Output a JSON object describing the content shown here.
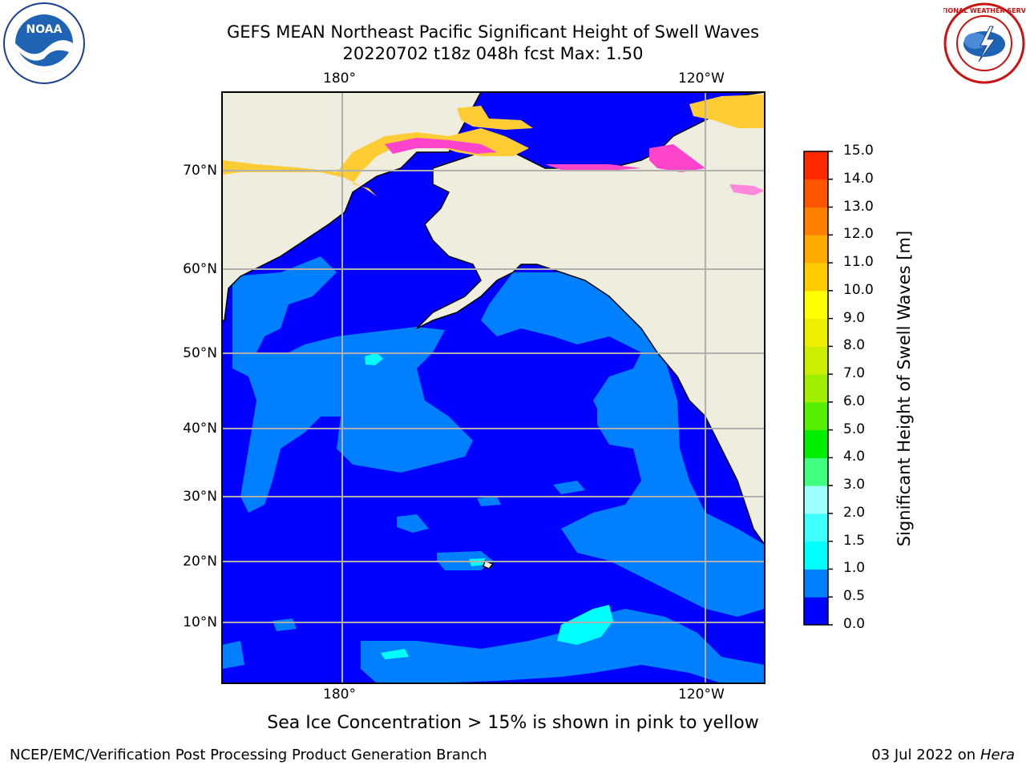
{
  "header": {
    "title_line1": "GEFS MEAN Northeast Pacific Significant Height of Swell Waves",
    "title_line2": "20220702 t18z 048h fcst   Max: 1.50"
  },
  "logos": {
    "left": "NOAA",
    "right": "NATIONAL WEATHER SERVICE"
  },
  "map": {
    "lon_labels": [
      "180°",
      "120°W"
    ],
    "lat_labels": [
      "70°N",
      "60°N",
      "50°N",
      "40°N",
      "30°N",
      "20°N",
      "10°N"
    ],
    "colors": {
      "land": "#efedde",
      "ocean_low": "#0000ff",
      "ocean_mid": "#0080ff",
      "ocean_high": "#00ffff",
      "ice": "#ffcc33",
      "ice_edge": "#ff44cc",
      "grid": "#b0b0b0"
    }
  },
  "colorbar": {
    "label": "Significant Height of Swell Waves [m]",
    "ticks": [
      "15.0",
      "14.0",
      "13.0",
      "12.0",
      "11.0",
      "10.0",
      "9.0",
      "8.0",
      "7.0",
      "6.0",
      "5.0",
      "4.0",
      "3.0",
      "2.0",
      "1.5",
      "1.0",
      "0.5",
      "0.0"
    ],
    "colors": [
      "#0000ff",
      "#0080ff",
      "#00ffff",
      "#40ffff",
      "#a0ffff",
      "#40ff80",
      "#00ee00",
      "#55ee00",
      "#a0ee00",
      "#ccee00",
      "#eeee00",
      "#ffff00",
      "#ffcc00",
      "#ffaa00",
      "#ff8000",
      "#ff5500",
      "#ff2a00"
    ]
  },
  "caption": "Sea Ice Concentration > 15% is shown in pink to yellow",
  "footer": {
    "left": "NCEP/EMC/Verification Post Processing Product Generation Branch",
    "right_date": "03 Jul 2022 on ",
    "right_host": "Hera"
  }
}
